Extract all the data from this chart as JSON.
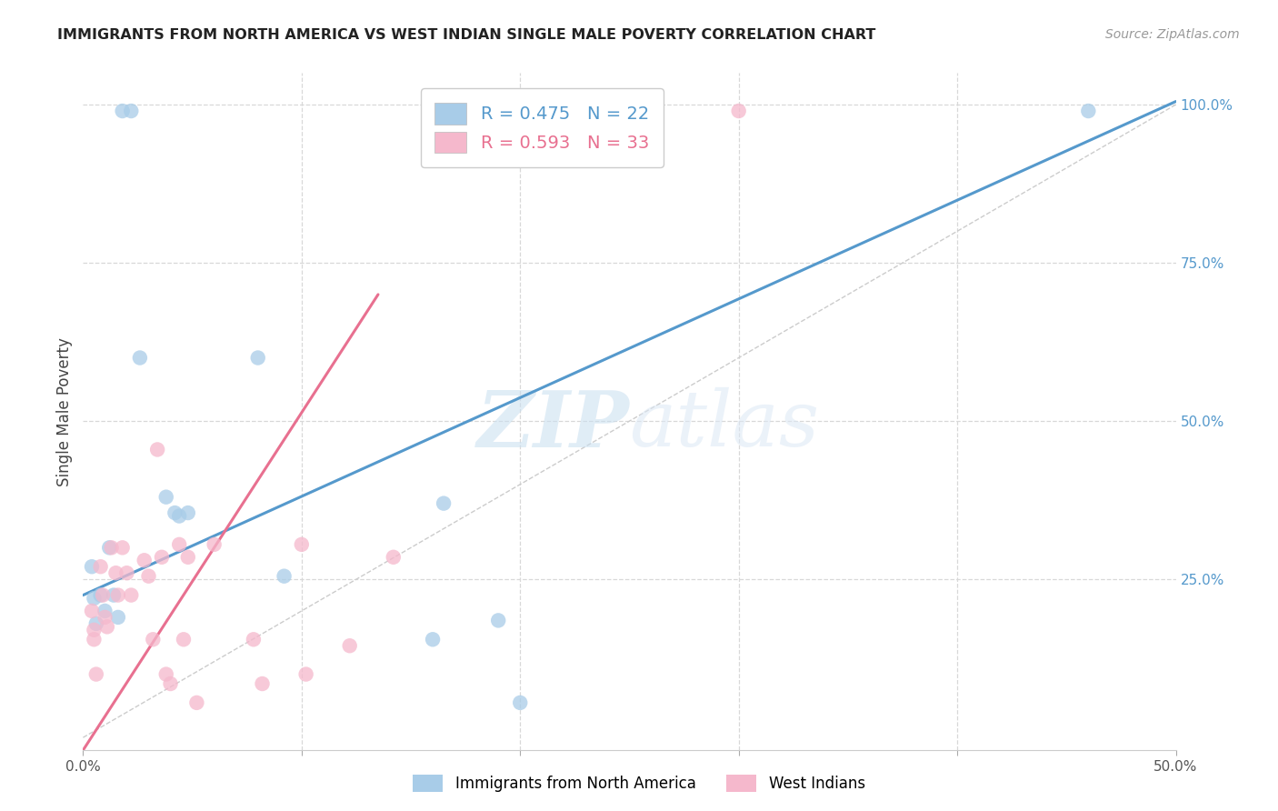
{
  "title": "IMMIGRANTS FROM NORTH AMERICA VS WEST INDIAN SINGLE MALE POVERTY CORRELATION CHART",
  "source": "Source: ZipAtlas.com",
  "ylabel": "Single Male Poverty",
  "xlim": [
    0.0,
    0.5
  ],
  "ylim": [
    -0.02,
    1.05
  ],
  "background_color": "#ffffff",
  "grid_color": "#d8d8d8",
  "watermark_zip": "ZIP",
  "watermark_atlas": "atlas",
  "blue_color": "#a8cce8",
  "pink_color": "#f5b8cc",
  "blue_line_color": "#5599cc",
  "pink_line_color": "#e87090",
  "diag_color": "#cccccc",
  "R_blue": "0.475",
  "N_blue": "22",
  "R_pink": "0.593",
  "N_pink": "33",
  "blue_points_x": [
    0.018,
    0.022,
    0.026,
    0.004,
    0.005,
    0.006,
    0.008,
    0.01,
    0.012,
    0.014,
    0.016,
    0.038,
    0.042,
    0.044,
    0.048,
    0.08,
    0.092,
    0.16,
    0.165,
    0.19,
    0.2,
    0.46
  ],
  "blue_points_y": [
    0.99,
    0.99,
    0.6,
    0.27,
    0.22,
    0.18,
    0.225,
    0.2,
    0.3,
    0.225,
    0.19,
    0.38,
    0.355,
    0.35,
    0.355,
    0.6,
    0.255,
    0.155,
    0.37,
    0.185,
    0.055,
    0.99
  ],
  "pink_points_x": [
    0.004,
    0.005,
    0.005,
    0.006,
    0.008,
    0.009,
    0.01,
    0.011,
    0.013,
    0.015,
    0.016,
    0.018,
    0.02,
    0.022,
    0.028,
    0.03,
    0.032,
    0.034,
    0.036,
    0.038,
    0.04,
    0.044,
    0.046,
    0.048,
    0.052,
    0.06,
    0.078,
    0.082,
    0.1,
    0.102,
    0.122,
    0.142,
    0.3
  ],
  "pink_points_y": [
    0.2,
    0.17,
    0.155,
    0.1,
    0.27,
    0.225,
    0.19,
    0.175,
    0.3,
    0.26,
    0.225,
    0.3,
    0.26,
    0.225,
    0.28,
    0.255,
    0.155,
    0.455,
    0.285,
    0.1,
    0.085,
    0.305,
    0.155,
    0.285,
    0.055,
    0.305,
    0.155,
    0.085,
    0.305,
    0.1,
    0.145,
    0.285,
    0.99
  ],
  "blue_line_x0": 0.0,
  "blue_line_y0": 0.225,
  "blue_line_x1": 0.5,
  "blue_line_y1": 1.005,
  "pink_line_x0": 0.0,
  "pink_line_y0": -0.02,
  "pink_line_x1": 0.135,
  "pink_line_y1": 0.7,
  "legend_labels": [
    "Immigrants from North America",
    "West Indians"
  ],
  "ytick_positions": [
    0.25,
    0.5,
    0.75,
    1.0
  ],
  "ytick_labels": [
    "25.0%",
    "50.0%",
    "75.0%",
    "100.0%"
  ],
  "xtick_positions": [
    0.0,
    0.1,
    0.2,
    0.3,
    0.4,
    0.5
  ],
  "xtick_labels": [
    "0.0%",
    "",
    "",
    "",
    "",
    "50.0%"
  ]
}
